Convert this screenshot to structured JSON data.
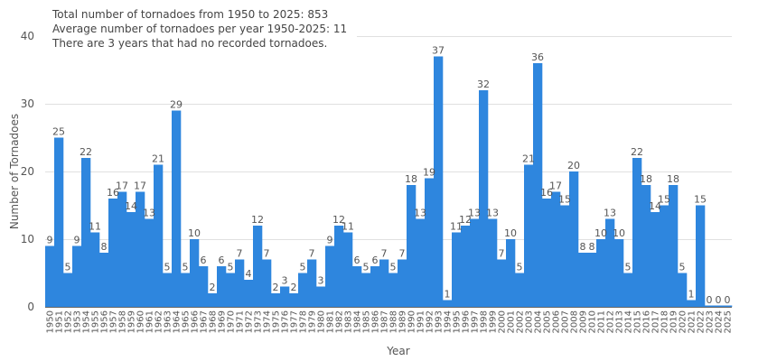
{
  "chart_data": {
    "type": "bar",
    "title": "",
    "xlabel": "Year",
    "ylabel": "Number of Tornadoes",
    "ylim": [
      0,
      40
    ],
    "yticks": [
      0,
      10,
      20,
      30,
      40
    ],
    "grid": true,
    "bar_color": "#2e86de",
    "annotations": [
      "Total number of tornadoes from 1950 to 2025: 853",
      "Average number of tornadoes per year 1950-2025: 11",
      "There are 3 years that had no recorded tornadoes."
    ],
    "categories": [
      "1950",
      "1951",
      "1952",
      "1953",
      "1954",
      "1955",
      "1956",
      "1957",
      "1958",
      "1959",
      "1960",
      "1961",
      "1962",
      "1963",
      "1964",
      "1965",
      "1966",
      "1967",
      "1968",
      "1969",
      "1970",
      "1971",
      "1972",
      "1973",
      "1974",
      "1975",
      "1976",
      "1977",
      "1978",
      "1979",
      "1980",
      "1981",
      "1982",
      "1983",
      "1984",
      "1985",
      "1986",
      "1987",
      "1988",
      "1989",
      "1990",
      "1991",
      "1992",
      "1993",
      "1994",
      "1995",
      "1996",
      "1997",
      "1998",
      "1999",
      "2000",
      "2001",
      "2002",
      "2003",
      "2004",
      "2005",
      "2006",
      "2007",
      "2008",
      "2009",
      "2010",
      "2011",
      "2012",
      "2013",
      "2014",
      "2015",
      "2016",
      "2017",
      "2018",
      "2019",
      "2020",
      "2021",
      "2022",
      "2023",
      "2024",
      "2025"
    ],
    "values": [
      9,
      25,
      5,
      9,
      22,
      11,
      8,
      16,
      17,
      14,
      17,
      13,
      21,
      5,
      29,
      5,
      10,
      6,
      2,
      6,
      5,
      7,
      4,
      12,
      7,
      2,
      3,
      2,
      5,
      7,
      3,
      9,
      12,
      11,
      6,
      5,
      6,
      7,
      5,
      7,
      18,
      13,
      19,
      37,
      1,
      11,
      12,
      13,
      32,
      13,
      7,
      10,
      5,
      21,
      36,
      16,
      17,
      15,
      20,
      8,
      8,
      10,
      13,
      10,
      5,
      22,
      18,
      14,
      15,
      18,
      5,
      1,
      15,
      0,
      0,
      0
    ]
  }
}
